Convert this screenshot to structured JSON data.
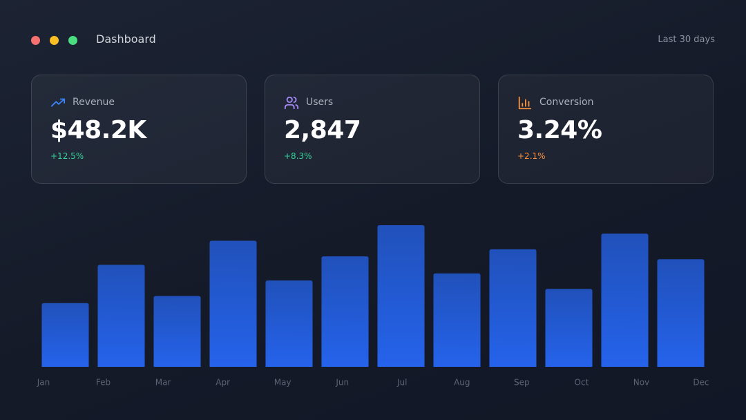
{
  "header": {
    "title": "Dashboard",
    "period": "Last 30 days"
  },
  "cards": [
    {
      "label": "Revenue",
      "value": "$48.2K",
      "change": "+12.5%",
      "change_color": "#34d399"
    },
    {
      "label": "Users",
      "value": "2,847",
      "change": "+8.3%",
      "change_color": "#34d399"
    },
    {
      "label": "Conversion",
      "value": "3.24%",
      "change": "+2.1%",
      "change_color": "#fb923c"
    }
  ],
  "chart_data": {
    "type": "bar",
    "categories": [
      "Jan",
      "Feb",
      "Mar",
      "Apr",
      "May",
      "Jun",
      "Jul",
      "Aug",
      "Sep",
      "Oct",
      "Nov",
      "Dec"
    ],
    "values": [
      45,
      72,
      50,
      89,
      61,
      78,
      100,
      66,
      83,
      55,
      94,
      76
    ],
    "color": "#2563eb",
    "ylim": [
      0,
      100
    ]
  }
}
